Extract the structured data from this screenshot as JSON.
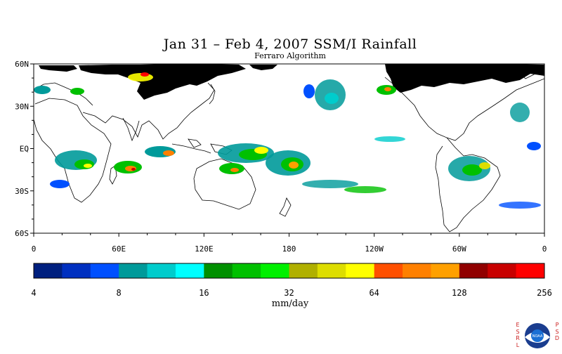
{
  "title": "Jan 31 – Feb 4, 2007 SSM/I Rainfall",
  "subtitle": "Ferraro Algorithm",
  "map": {
    "lat_labels": [
      "60N",
      "30N",
      "EQ",
      "30S",
      "60S"
    ],
    "lon_labels": [
      "0",
      "60E",
      "120E",
      "180",
      "120W",
      "60W",
      "0"
    ],
    "lat_range": [
      -60,
      60
    ],
    "lon_range": [
      0,
      360
    ],
    "land_color": "#ffffff",
    "no_data_color": "#000000"
  },
  "colorbar": {
    "units": "mm/day",
    "tick_labels": [
      "4",
      "8",
      "16",
      "32",
      "64",
      "128",
      "256"
    ],
    "colors": [
      "#00207f",
      "#0030c0",
      "#0050ff",
      "#009a9a",
      "#00cccc",
      "#00ffff",
      "#009000",
      "#00c000",
      "#00f000",
      "#b0b000",
      "#dddd00",
      "#ffff00",
      "#ff5000",
      "#ff8000",
      "#ffa000",
      "#900000",
      "#c80000",
      "#ff0000"
    ]
  },
  "logo": {
    "left_letters": [
      "E",
      "S",
      "R",
      "L"
    ],
    "right_letters": [
      "P",
      "S",
      "D"
    ],
    "emblem_text": "NOAA"
  }
}
